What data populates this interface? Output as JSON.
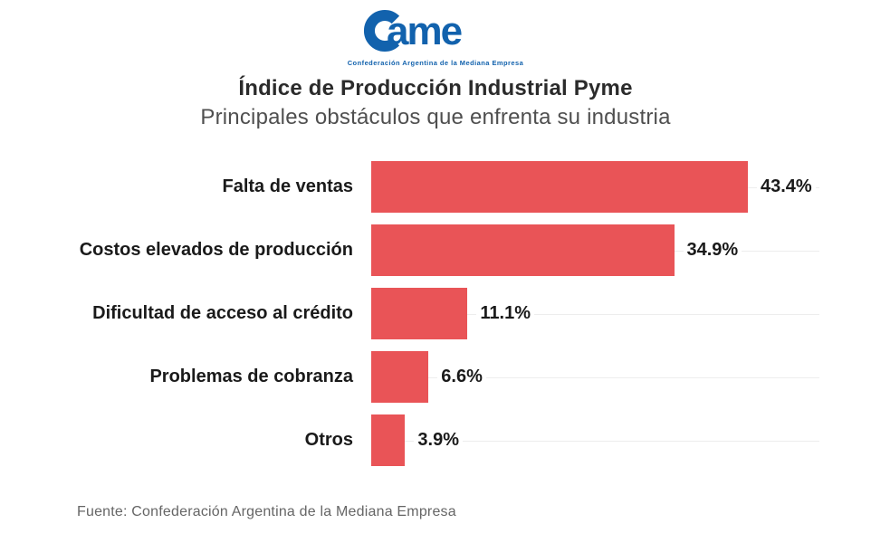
{
  "logo": {
    "wordmark": "ame",
    "tagline": "Confederación Argentina de la Mediana Empresa",
    "color": "#1262ad"
  },
  "header": {
    "title": "Índice de Producción Industrial Pyme",
    "subtitle": "Principales obstáculos que enfrenta su industria"
  },
  "chart_data": {
    "type": "bar",
    "orientation": "horizontal",
    "title": "Índice de Producción Industrial Pyme",
    "subtitle": "Principales obstáculos que enfrenta su industria",
    "categories": [
      "Falta de ventas",
      "Costos elevados de producción",
      "Dificultad de acceso al crédito",
      "Problemas de cobranza",
      "Otros"
    ],
    "values": [
      43.4,
      34.9,
      11.1,
      6.6,
      3.9
    ],
    "value_labels": [
      "43.4%",
      "34.9%",
      "11.1%",
      "6.6%",
      "3.9%"
    ],
    "bar_color": "#e95457",
    "xlim": [
      0,
      45
    ],
    "grid": "faint horizontal line at each row center",
    "legend": "none",
    "value_label_position": "right of bar"
  },
  "footer": {
    "source": "Fuente: Confederación Argentina de la Mediana Empresa"
  }
}
